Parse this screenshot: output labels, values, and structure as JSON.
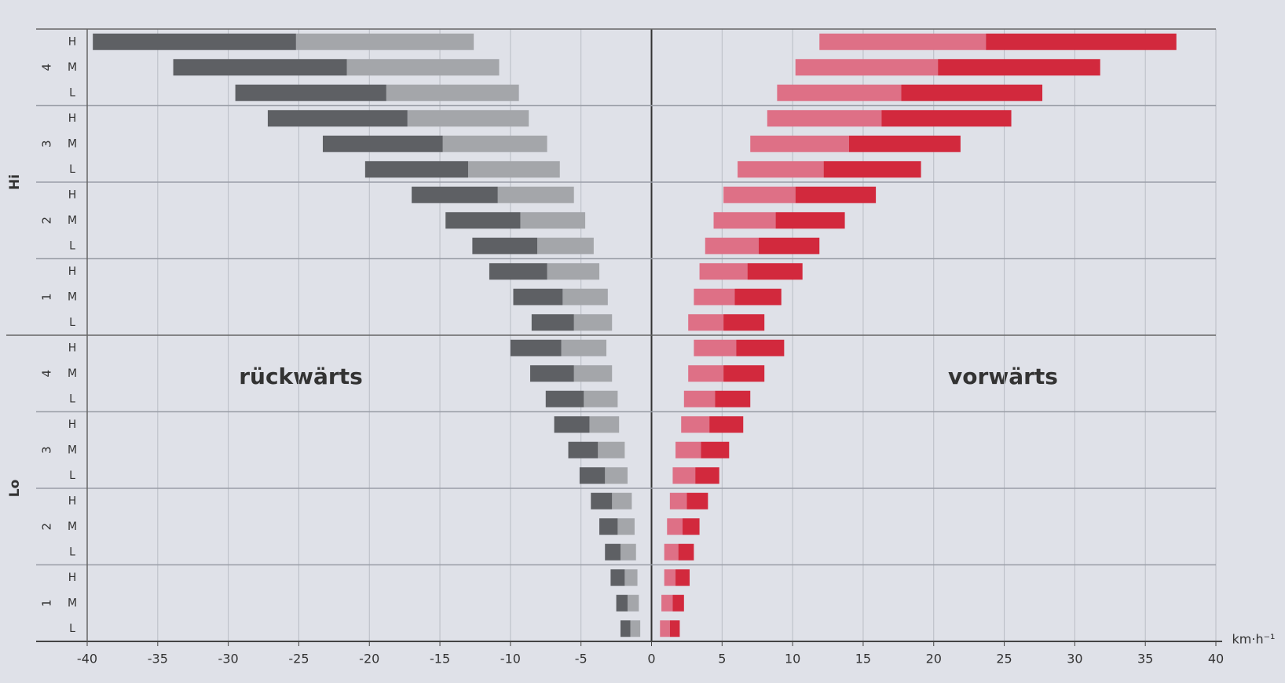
{
  "chart_data": {
    "type": "floating-bar",
    "orientation": "horizontal",
    "categories": [
      "H",
      "M",
      "L",
      "H",
      "M",
      "L",
      "H",
      "M",
      "L",
      "H",
      "M",
      "L",
      "H",
      "M",
      "L",
      "H",
      "M",
      "L",
      "H",
      "M",
      "L",
      "H",
      "M",
      "L"
    ],
    "gear_labels": [
      "4",
      "3",
      "2",
      "1",
      "4",
      "3",
      "2",
      "1"
    ],
    "range_labels": [
      "Hi",
      "Lo"
    ],
    "annotations": [
      "rückwärts",
      "vorwärts"
    ],
    "x_unit": "km·h⁻¹",
    "xlim": [
      -40,
      40
    ],
    "xticks": [
      -40,
      -35,
      -30,
      -25,
      -20,
      -15,
      -10,
      -5,
      0,
      5,
      10,
      15,
      20,
      25,
      30,
      35,
      40
    ],
    "grid": true,
    "series": [
      {
        "color": "#a4a6aa",
        "values": [
          [
            -12.6,
            -25.2
          ],
          [
            -10.8,
            -21.6
          ],
          [
            -9.4,
            -18.8
          ],
          [
            -8.7,
            -17.3
          ],
          [
            -7.4,
            -14.8
          ],
          [
            -6.5,
            -13.0
          ],
          [
            -5.5,
            -10.9
          ],
          [
            -4.7,
            -9.3
          ],
          [
            -4.1,
            -8.1
          ],
          [
            -3.7,
            -7.4
          ],
          [
            -3.1,
            -6.3
          ],
          [
            -2.8,
            -5.5
          ],
          [
            -3.2,
            -6.4
          ],
          [
            -2.8,
            -5.5
          ],
          [
            -2.4,
            -4.8
          ],
          [
            -2.3,
            -4.4
          ],
          [
            -1.9,
            -3.8
          ],
          [
            -1.7,
            -3.3
          ],
          [
            -1.4,
            -2.8
          ],
          [
            -1.2,
            -2.4
          ],
          [
            -1.1,
            -2.2
          ],
          [
            -1.0,
            -1.9
          ],
          [
            -0.9,
            -1.7
          ],
          [
            -0.8,
            -1.5
          ]
        ]
      },
      {
        "color": "#5e6064",
        "values": [
          [
            -25.2,
            -39.6
          ],
          [
            -21.6,
            -33.9
          ],
          [
            -18.8,
            -29.5
          ],
          [
            -17.3,
            -27.2
          ],
          [
            -14.8,
            -23.3
          ],
          [
            -13.0,
            -20.3
          ],
          [
            -10.9,
            -17.0
          ],
          [
            -9.3,
            -14.6
          ],
          [
            -8.1,
            -12.7
          ],
          [
            -7.4,
            -11.5
          ],
          [
            -6.3,
            -9.8
          ],
          [
            -5.5,
            -8.5
          ],
          [
            -6.4,
            -10.0
          ],
          [
            -5.5,
            -8.6
          ],
          [
            -4.8,
            -7.5
          ],
          [
            -4.4,
            -6.9
          ],
          [
            -3.8,
            -5.9
          ],
          [
            -3.3,
            -5.1
          ],
          [
            -2.8,
            -4.3
          ],
          [
            -2.4,
            -3.7
          ],
          [
            -2.2,
            -3.3
          ],
          [
            -1.9,
            -2.9
          ],
          [
            -1.7,
            -2.5
          ],
          [
            -1.5,
            -2.2
          ]
        ]
      },
      {
        "color": "#de7086",
        "values": [
          [
            11.9,
            23.7
          ],
          [
            10.2,
            20.3
          ],
          [
            8.9,
            17.7
          ],
          [
            8.2,
            16.3
          ],
          [
            7.0,
            14.0
          ],
          [
            6.1,
            12.2
          ],
          [
            5.1,
            10.2
          ],
          [
            4.4,
            8.8
          ],
          [
            3.8,
            7.6
          ],
          [
            3.4,
            6.8
          ],
          [
            3.0,
            5.9
          ],
          [
            2.6,
            5.1
          ],
          [
            3.0,
            6.0
          ],
          [
            2.6,
            5.1
          ],
          [
            2.3,
            4.5
          ],
          [
            2.1,
            4.1
          ],
          [
            1.7,
            3.5
          ],
          [
            1.5,
            3.1
          ],
          [
            1.3,
            2.5
          ],
          [
            1.1,
            2.2
          ],
          [
            0.9,
            1.9
          ],
          [
            0.9,
            1.7
          ],
          [
            0.7,
            1.5
          ],
          [
            0.6,
            1.3
          ]
        ]
      },
      {
        "color": "#d2293d",
        "values": [
          [
            23.7,
            37.2
          ],
          [
            20.3,
            31.8
          ],
          [
            17.7,
            27.7
          ],
          [
            16.3,
            25.5
          ],
          [
            14.0,
            21.9
          ],
          [
            12.2,
            19.1
          ],
          [
            10.2,
            15.9
          ],
          [
            8.8,
            13.7
          ],
          [
            7.6,
            11.9
          ],
          [
            6.8,
            10.7
          ],
          [
            5.9,
            9.2
          ],
          [
            5.1,
            8.0
          ],
          [
            6.0,
            9.4
          ],
          [
            5.1,
            8.0
          ],
          [
            4.5,
            7.0
          ],
          [
            4.1,
            6.5
          ],
          [
            3.5,
            5.5
          ],
          [
            3.1,
            4.8
          ],
          [
            2.5,
            4.0
          ],
          [
            2.2,
            3.4
          ],
          [
            1.9,
            3.0
          ],
          [
            1.7,
            2.7
          ],
          [
            1.5,
            2.3
          ],
          [
            1.3,
            2.0
          ]
        ]
      }
    ]
  }
}
